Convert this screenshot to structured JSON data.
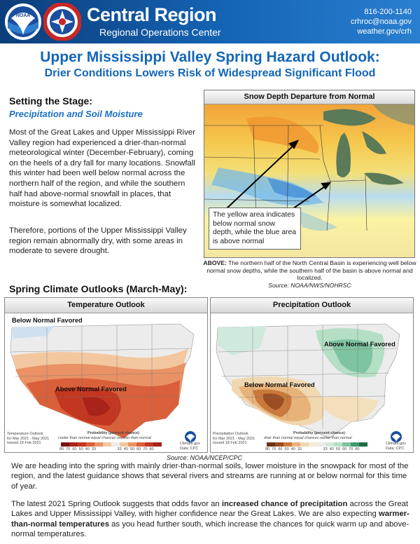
{
  "header": {
    "noaa_logo_text": "NOAA",
    "nws_logo_text": "NATIONAL WEATHER SERVICE",
    "region_title": "Central Region",
    "region_subtitle": "Regional Operations Center",
    "phone": "816-200-1140",
    "email": "crhroc@noaa.gov",
    "website": "weather.gov/crh"
  },
  "title": {
    "line1": "Upper Mississippi Valley Spring Hazard Outlook:",
    "line2": "Drier Conditions Lowers Risk of Widespread Significant Flood"
  },
  "stage": {
    "heading": "Setting the Stage:",
    "subheading": "Precipitation and Soil Moisture",
    "para1": "Most of the Great Lakes and Upper Mississippi River Valley region had experienced a drier-than-normal meteorological winter (December-February), coming on the heels of a dry fall for many locations. Snowfall this winter had been well below normal across the northern half of the region, and while the southern half had above-normal snowfall in places, that moisture is somewhat localized.",
    "para2": "Therefore, portions of the Upper Mississippi Valley region remain abnormally dry, with some areas in moderate to severe drought."
  },
  "snow": {
    "title": "Snow Depth Departure from Normal",
    "callout": "The yellow area indicates below normal snow depth, while the blue area is above normal",
    "caption_bold": "ABOVE:",
    "caption": " The northern half of the North Central Basin is experiencing well below normal snow depths, while the southern half of the basin is above normal and localized.",
    "source": "Source: NOAA/NWS/NOHRSC"
  },
  "spring": {
    "heading": "Spring Climate Outlooks (March-May):",
    "temp": {
      "title": "Temperature Outlook",
      "label_below": "Below Normal Favored",
      "label_above": "Above Normal Favored",
      "valid": "Temperature Outlook\nfor Mar 2021 - May 2021\nIssued 18 Feb 2021",
      "legend_title": "Probability (percent chance)",
      "legend_cats": "cooler than normal   equal chances   warmer than normal",
      "legend_ticks": "80  70  60  50  40  33                    33  40  50  60  70  80",
      "logo_note": "Climate.gov\nData: CPC"
    },
    "precip": {
      "title": "Precipitation Outlook",
      "label_above": "Above Normal Favored",
      "label_below": "Below Normal Favored",
      "valid": "Precipitation Outlook\nfor Mar 2021 - May 2021\nIssued 18 Feb 2021",
      "legend_title": "Probability (percent chance)",
      "legend_cats": "drier than normal   equal chances   wetter than normal",
      "legend_ticks": "80  70  60  50  40  33                    33  40  50  60  70  80",
      "logo_note": "Climate.gov\nData: CPC"
    },
    "source": "Source: NOAA/NCEP/CPC"
  },
  "body": {
    "para1": "We are heading into the spring with mainly drier-than-normal soils, lower moisture in the snowpack for most of the region, and the latest guidance shows that several rivers and streams are running at or below normal for this time of year.",
    "para2_a": "The latest 2021 Spring Outlook suggests that odds favor an ",
    "para2_b": "increased chance of precipitation",
    "para2_c": " across the Great Lakes and Upper Mississippi Valley, with higher confidence near the Great Lakes. We are also expecting ",
    "para2_d": "warmer-than-normal temperatures",
    "para2_e": " as you head further south, which increase the chances for quick warm up and above-normal temperatures."
  },
  "colors": {
    "header_blue": "#0b3d7a",
    "title_blue": "#1366b8",
    "sub_blue": "#1a6fc4"
  }
}
